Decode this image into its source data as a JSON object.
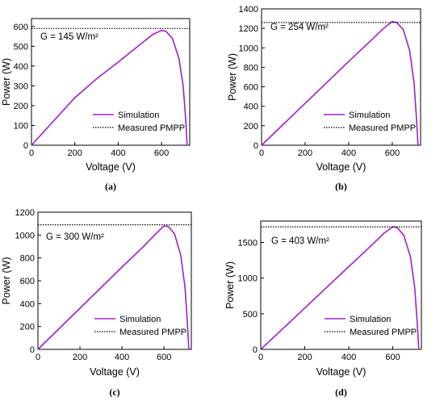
{
  "colors": {
    "simulation": "#a020c8",
    "measured": "#000000",
    "axis": "#000000"
  },
  "chart_data": [
    {
      "type": "line",
      "caption": "(a)",
      "annotation": "G = 145 W/m²",
      "xlabel": "Voltage (V)",
      "ylabel": "Power (W)",
      "xlim": [
        0,
        730
      ],
      "ylim": [
        0,
        640
      ],
      "xticks": [
        0,
        200,
        400,
        600
      ],
      "yticks": [
        0,
        100,
        200,
        300,
        400,
        500,
        600
      ],
      "legend_position": "bottom-right",
      "series": [
        {
          "name": "Simulation",
          "style": "solid",
          "x": [
            0,
            100,
            200,
            300,
            400,
            500,
            560,
            600,
            620,
            650,
            680,
            700,
            712,
            718
          ],
          "y": [
            0,
            120,
            240,
            335,
            420,
            508,
            560,
            580,
            576,
            540,
            440,
            300,
            120,
            0
          ]
        },
        {
          "name": "Measured PMPP",
          "style": "dotted",
          "x": [
            0,
            730
          ],
          "y": [
            590,
            590
          ]
        }
      ]
    },
    {
      "type": "line",
      "caption": "(b)",
      "annotation": "G = 254 W/m²",
      "xlabel": "Voltage (V)",
      "ylabel": "Power (W)",
      "xlim": [
        0,
        730
      ],
      "ylim": [
        0,
        1400
      ],
      "xticks": [
        0,
        200,
        400,
        600
      ],
      "yticks": [
        0,
        200,
        400,
        600,
        800,
        1000,
        1200,
        1400
      ],
      "legend_position": "bottom-right",
      "series": [
        {
          "name": "Simulation",
          "style": "solid",
          "x": [
            0,
            100,
            200,
            300,
            400,
            500,
            560,
            600,
            620,
            650,
            680,
            700,
            712,
            718
          ],
          "y": [
            0,
            215,
            430,
            645,
            860,
            1070,
            1200,
            1270,
            1260,
            1190,
            970,
            640,
            250,
            0
          ]
        },
        {
          "name": "Measured PMPP",
          "style": "dotted",
          "x": [
            0,
            730
          ],
          "y": [
            1260,
            1260
          ]
        }
      ]
    },
    {
      "type": "line",
      "caption": "(c)",
      "annotation": "G = 300 W/m²",
      "xlabel": "Voltage (V)",
      "ylabel": "Power (W)",
      "xlim": [
        0,
        730
      ],
      "ylim": [
        0,
        1200
      ],
      "xticks": [
        0,
        200,
        400,
        600
      ],
      "yticks": [
        0,
        200,
        400,
        600,
        800,
        1000,
        1200
      ],
      "legend_position": "bottom-right",
      "series": [
        {
          "name": "Simulation",
          "style": "solid",
          "x": [
            0,
            100,
            200,
            300,
            400,
            500,
            560,
            600,
            620,
            650,
            680,
            700,
            712,
            718
          ],
          "y": [
            0,
            180,
            360,
            540,
            720,
            895,
            1010,
            1080,
            1075,
            1010,
            820,
            540,
            210,
            0
          ]
        },
        {
          "name": "Measured PMPP",
          "style": "dotted",
          "x": [
            0,
            730
          ],
          "y": [
            1090,
            1090
          ]
        }
      ]
    },
    {
      "type": "line",
      "caption": "(d)",
      "annotation": "G = 403 W/m²",
      "xlabel": "Voltage (V)",
      "ylabel": "Power (W)",
      "xlim": [
        0,
        730
      ],
      "ylim": [
        0,
        1800
      ],
      "xticks": [
        0,
        200,
        400,
        600
      ],
      "yticks": [
        0,
        500,
        1000,
        1500
      ],
      "legend_position": "bottom-right",
      "series": [
        {
          "name": "Simulation",
          "style": "solid",
          "x": [
            0,
            100,
            200,
            300,
            400,
            500,
            560,
            600,
            620,
            650,
            680,
            700,
            712,
            718
          ],
          "y": [
            0,
            290,
            580,
            870,
            1160,
            1450,
            1630,
            1720,
            1710,
            1600,
            1300,
            860,
            330,
            0
          ]
        },
        {
          "name": "Measured PMPP",
          "style": "dotted",
          "x": [
            0,
            730
          ],
          "y": [
            1720,
            1720
          ]
        }
      ]
    }
  ]
}
